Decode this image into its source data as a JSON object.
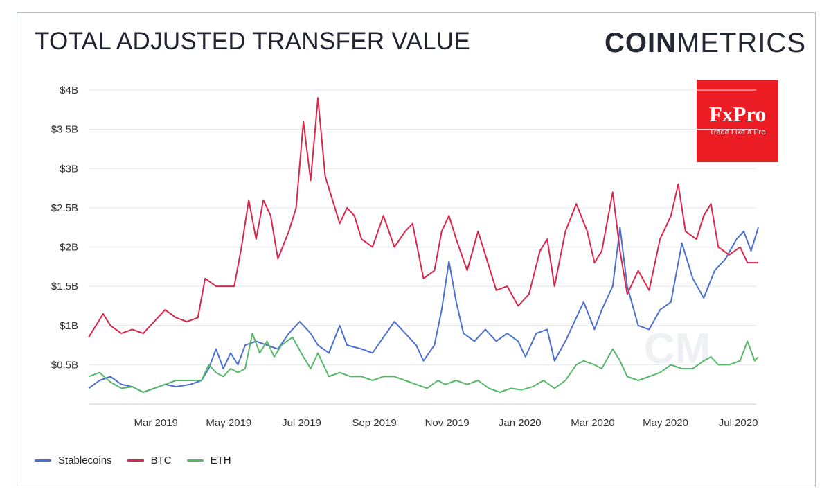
{
  "header": {
    "title": "TOTAL ADJUSTED TRANSFER VALUE"
  },
  "brand": {
    "bold": "COIN",
    "light": "METRICS",
    "watermark": "CM"
  },
  "sponsor": {
    "name": "FxPro",
    "tagline": "Trade Like a Pro",
    "color": "#ec1c24"
  },
  "chart_data": {
    "type": "line",
    "title": "TOTAL ADJUSTED TRANSFER VALUE",
    "xlabel": "",
    "ylabel": "",
    "ylim": [
      0,
      4
    ],
    "xlim": [
      0,
      18
    ],
    "y_ticks": [
      {
        "v": 0.5,
        "label": "$0.5B"
      },
      {
        "v": 1,
        "label": "$1B"
      },
      {
        "v": 1.5,
        "label": "$1.5B"
      },
      {
        "v": 2,
        "label": "$2B"
      },
      {
        "v": 2.5,
        "label": "$2.5B"
      },
      {
        "v": 3,
        "label": "$3B"
      },
      {
        "v": 3.5,
        "label": "$3.5B"
      },
      {
        "v": 4,
        "label": "$4B"
      }
    ],
    "x_ticks": [
      {
        "v": 1.85,
        "label": "Mar 2019"
      },
      {
        "v": 3.85,
        "label": "May 2019"
      },
      {
        "v": 5.85,
        "label": "Jul 2019"
      },
      {
        "v": 7.85,
        "label": "Sep 2019"
      },
      {
        "v": 9.85,
        "label": "Nov 2019"
      },
      {
        "v": 11.85,
        "label": "Jan 2020"
      },
      {
        "v": 13.85,
        "label": "Mar 2020"
      },
      {
        "v": 15.85,
        "label": "May 2020"
      },
      {
        "v": 17.85,
        "label": "Jul 2020"
      }
    ],
    "grid": true,
    "legend_position": "bottom-left",
    "series": [
      {
        "name": "Stablecoins",
        "color": "#4a6fd1",
        "points": [
          [
            0,
            0.2
          ],
          [
            0.3,
            0.3
          ],
          [
            0.6,
            0.35
          ],
          [
            0.9,
            0.25
          ],
          [
            1.2,
            0.22
          ],
          [
            1.5,
            0.15
          ],
          [
            1.8,
            0.2
          ],
          [
            2.1,
            0.25
          ],
          [
            2.4,
            0.22
          ],
          [
            2.8,
            0.25
          ],
          [
            3.1,
            0.3
          ],
          [
            3.3,
            0.45
          ],
          [
            3.5,
            0.7
          ],
          [
            3.7,
            0.45
          ],
          [
            3.9,
            0.65
          ],
          [
            4.1,
            0.5
          ],
          [
            4.3,
            0.75
          ],
          [
            4.6,
            0.8
          ],
          [
            4.9,
            0.75
          ],
          [
            5.2,
            0.7
          ],
          [
            5.5,
            0.9
          ],
          [
            5.8,
            1.05
          ],
          [
            6.1,
            0.9
          ],
          [
            6.3,
            0.75
          ],
          [
            6.6,
            0.65
          ],
          [
            6.9,
            1.0
          ],
          [
            7.1,
            0.75
          ],
          [
            7.5,
            0.7
          ],
          [
            7.8,
            0.65
          ],
          [
            8.1,
            0.85
          ],
          [
            8.4,
            1.05
          ],
          [
            8.7,
            0.9
          ],
          [
            9.0,
            0.75
          ],
          [
            9.2,
            0.55
          ],
          [
            9.5,
            0.75
          ],
          [
            9.7,
            1.2
          ],
          [
            9.9,
            1.82
          ],
          [
            10.1,
            1.3
          ],
          [
            10.3,
            0.9
          ],
          [
            10.6,
            0.8
          ],
          [
            10.9,
            0.95
          ],
          [
            11.2,
            0.8
          ],
          [
            11.5,
            0.9
          ],
          [
            11.8,
            0.8
          ],
          [
            12.0,
            0.6
          ],
          [
            12.3,
            0.9
          ],
          [
            12.6,
            0.95
          ],
          [
            12.8,
            0.55
          ],
          [
            13.1,
            0.8
          ],
          [
            13.4,
            1.1
          ],
          [
            13.6,
            1.3
          ],
          [
            13.9,
            0.95
          ],
          [
            14.1,
            1.2
          ],
          [
            14.4,
            1.5
          ],
          [
            14.6,
            2.25
          ],
          [
            14.8,
            1.5
          ],
          [
            15.1,
            1.0
          ],
          [
            15.4,
            0.95
          ],
          [
            15.7,
            1.2
          ],
          [
            16.0,
            1.3
          ],
          [
            16.3,
            2.05
          ],
          [
            16.6,
            1.6
          ],
          [
            16.9,
            1.35
          ],
          [
            17.2,
            1.7
          ],
          [
            17.5,
            1.85
          ],
          [
            17.8,
            2.1
          ],
          [
            18.0,
            2.2
          ],
          [
            18.2,
            1.95
          ],
          [
            18.4,
            2.25
          ]
        ]
      },
      {
        "name": "BTC",
        "color": "#d9264a",
        "points": [
          [
            0,
            0.85
          ],
          [
            0.2,
            1.0
          ],
          [
            0.4,
            1.15
          ],
          [
            0.6,
            1.0
          ],
          [
            0.9,
            0.9
          ],
          [
            1.2,
            0.95
          ],
          [
            1.5,
            0.9
          ],
          [
            1.8,
            1.05
          ],
          [
            2.1,
            1.2
          ],
          [
            2.4,
            1.1
          ],
          [
            2.7,
            1.05
          ],
          [
            3.0,
            1.1
          ],
          [
            3.2,
            1.6
          ],
          [
            3.5,
            1.5
          ],
          [
            3.8,
            1.5
          ],
          [
            4.0,
            1.5
          ],
          [
            4.2,
            2.0
          ],
          [
            4.4,
            2.6
          ],
          [
            4.6,
            2.1
          ],
          [
            4.8,
            2.6
          ],
          [
            5.0,
            2.4
          ],
          [
            5.2,
            1.85
          ],
          [
            5.5,
            2.2
          ],
          [
            5.7,
            2.5
          ],
          [
            5.9,
            3.6
          ],
          [
            6.1,
            2.85
          ],
          [
            6.3,
            3.9
          ],
          [
            6.5,
            2.9
          ],
          [
            6.7,
            2.6
          ],
          [
            6.9,
            2.3
          ],
          [
            7.1,
            2.5
          ],
          [
            7.3,
            2.4
          ],
          [
            7.5,
            2.1
          ],
          [
            7.8,
            2.0
          ],
          [
            8.1,
            2.4
          ],
          [
            8.4,
            2.0
          ],
          [
            8.7,
            2.2
          ],
          [
            8.9,
            2.3
          ],
          [
            9.2,
            1.6
          ],
          [
            9.5,
            1.7
          ],
          [
            9.7,
            2.2
          ],
          [
            9.9,
            2.4
          ],
          [
            10.1,
            2.1
          ],
          [
            10.4,
            1.7
          ],
          [
            10.7,
            2.2
          ],
          [
            10.9,
            1.9
          ],
          [
            11.2,
            1.45
          ],
          [
            11.5,
            1.5
          ],
          [
            11.8,
            1.25
          ],
          [
            12.1,
            1.4
          ],
          [
            12.4,
            1.95
          ],
          [
            12.6,
            2.1
          ],
          [
            12.8,
            1.5
          ],
          [
            13.1,
            2.2
          ],
          [
            13.4,
            2.55
          ],
          [
            13.7,
            2.2
          ],
          [
            13.9,
            1.8
          ],
          [
            14.1,
            1.95
          ],
          [
            14.4,
            2.7
          ],
          [
            14.6,
            1.95
          ],
          [
            14.8,
            1.4
          ],
          [
            15.1,
            1.7
          ],
          [
            15.4,
            1.45
          ],
          [
            15.7,
            2.1
          ],
          [
            16.0,
            2.4
          ],
          [
            16.2,
            2.8
          ],
          [
            16.4,
            2.2
          ],
          [
            16.7,
            2.1
          ],
          [
            16.9,
            2.4
          ],
          [
            17.1,
            2.55
          ],
          [
            17.3,
            2.0
          ],
          [
            17.6,
            1.9
          ],
          [
            17.9,
            2.0
          ],
          [
            18.1,
            1.8
          ],
          [
            18.4,
            1.8
          ]
        ]
      },
      {
        "name": "ETH",
        "color": "#58b86a",
        "points": [
          [
            0,
            0.35
          ],
          [
            0.3,
            0.4
          ],
          [
            0.6,
            0.28
          ],
          [
            0.9,
            0.2
          ],
          [
            1.2,
            0.22
          ],
          [
            1.5,
            0.15
          ],
          [
            1.8,
            0.2
          ],
          [
            2.1,
            0.25
          ],
          [
            2.4,
            0.3
          ],
          [
            2.8,
            0.3
          ],
          [
            3.1,
            0.3
          ],
          [
            3.3,
            0.5
          ],
          [
            3.5,
            0.4
          ],
          [
            3.7,
            0.35
          ],
          [
            3.9,
            0.45
          ],
          [
            4.1,
            0.4
          ],
          [
            4.3,
            0.45
          ],
          [
            4.5,
            0.9
          ],
          [
            4.7,
            0.65
          ],
          [
            4.9,
            0.8
          ],
          [
            5.1,
            0.6
          ],
          [
            5.3,
            0.75
          ],
          [
            5.6,
            0.85
          ],
          [
            5.9,
            0.6
          ],
          [
            6.1,
            0.45
          ],
          [
            6.3,
            0.65
          ],
          [
            6.6,
            0.35
          ],
          [
            6.9,
            0.4
          ],
          [
            7.2,
            0.35
          ],
          [
            7.5,
            0.35
          ],
          [
            7.8,
            0.3
          ],
          [
            8.1,
            0.35
          ],
          [
            8.4,
            0.35
          ],
          [
            8.7,
            0.3
          ],
          [
            9.0,
            0.25
          ],
          [
            9.3,
            0.2
          ],
          [
            9.6,
            0.3
          ],
          [
            9.8,
            0.25
          ],
          [
            10.1,
            0.3
          ],
          [
            10.4,
            0.25
          ],
          [
            10.7,
            0.3
          ],
          [
            11.0,
            0.2
          ],
          [
            11.3,
            0.15
          ],
          [
            11.6,
            0.2
          ],
          [
            11.9,
            0.18
          ],
          [
            12.2,
            0.22
          ],
          [
            12.5,
            0.3
          ],
          [
            12.8,
            0.2
          ],
          [
            13.1,
            0.3
          ],
          [
            13.4,
            0.5
          ],
          [
            13.6,
            0.55
          ],
          [
            13.9,
            0.5
          ],
          [
            14.1,
            0.45
          ],
          [
            14.4,
            0.7
          ],
          [
            14.6,
            0.55
          ],
          [
            14.8,
            0.35
          ],
          [
            15.1,
            0.3
          ],
          [
            15.4,
            0.35
          ],
          [
            15.7,
            0.4
          ],
          [
            16.0,
            0.5
          ],
          [
            16.3,
            0.45
          ],
          [
            16.6,
            0.45
          ],
          [
            16.9,
            0.55
          ],
          [
            17.1,
            0.6
          ],
          [
            17.3,
            0.5
          ],
          [
            17.6,
            0.5
          ],
          [
            17.9,
            0.55
          ],
          [
            18.1,
            0.8
          ],
          [
            18.3,
            0.55
          ],
          [
            18.4,
            0.6
          ]
        ]
      }
    ]
  }
}
